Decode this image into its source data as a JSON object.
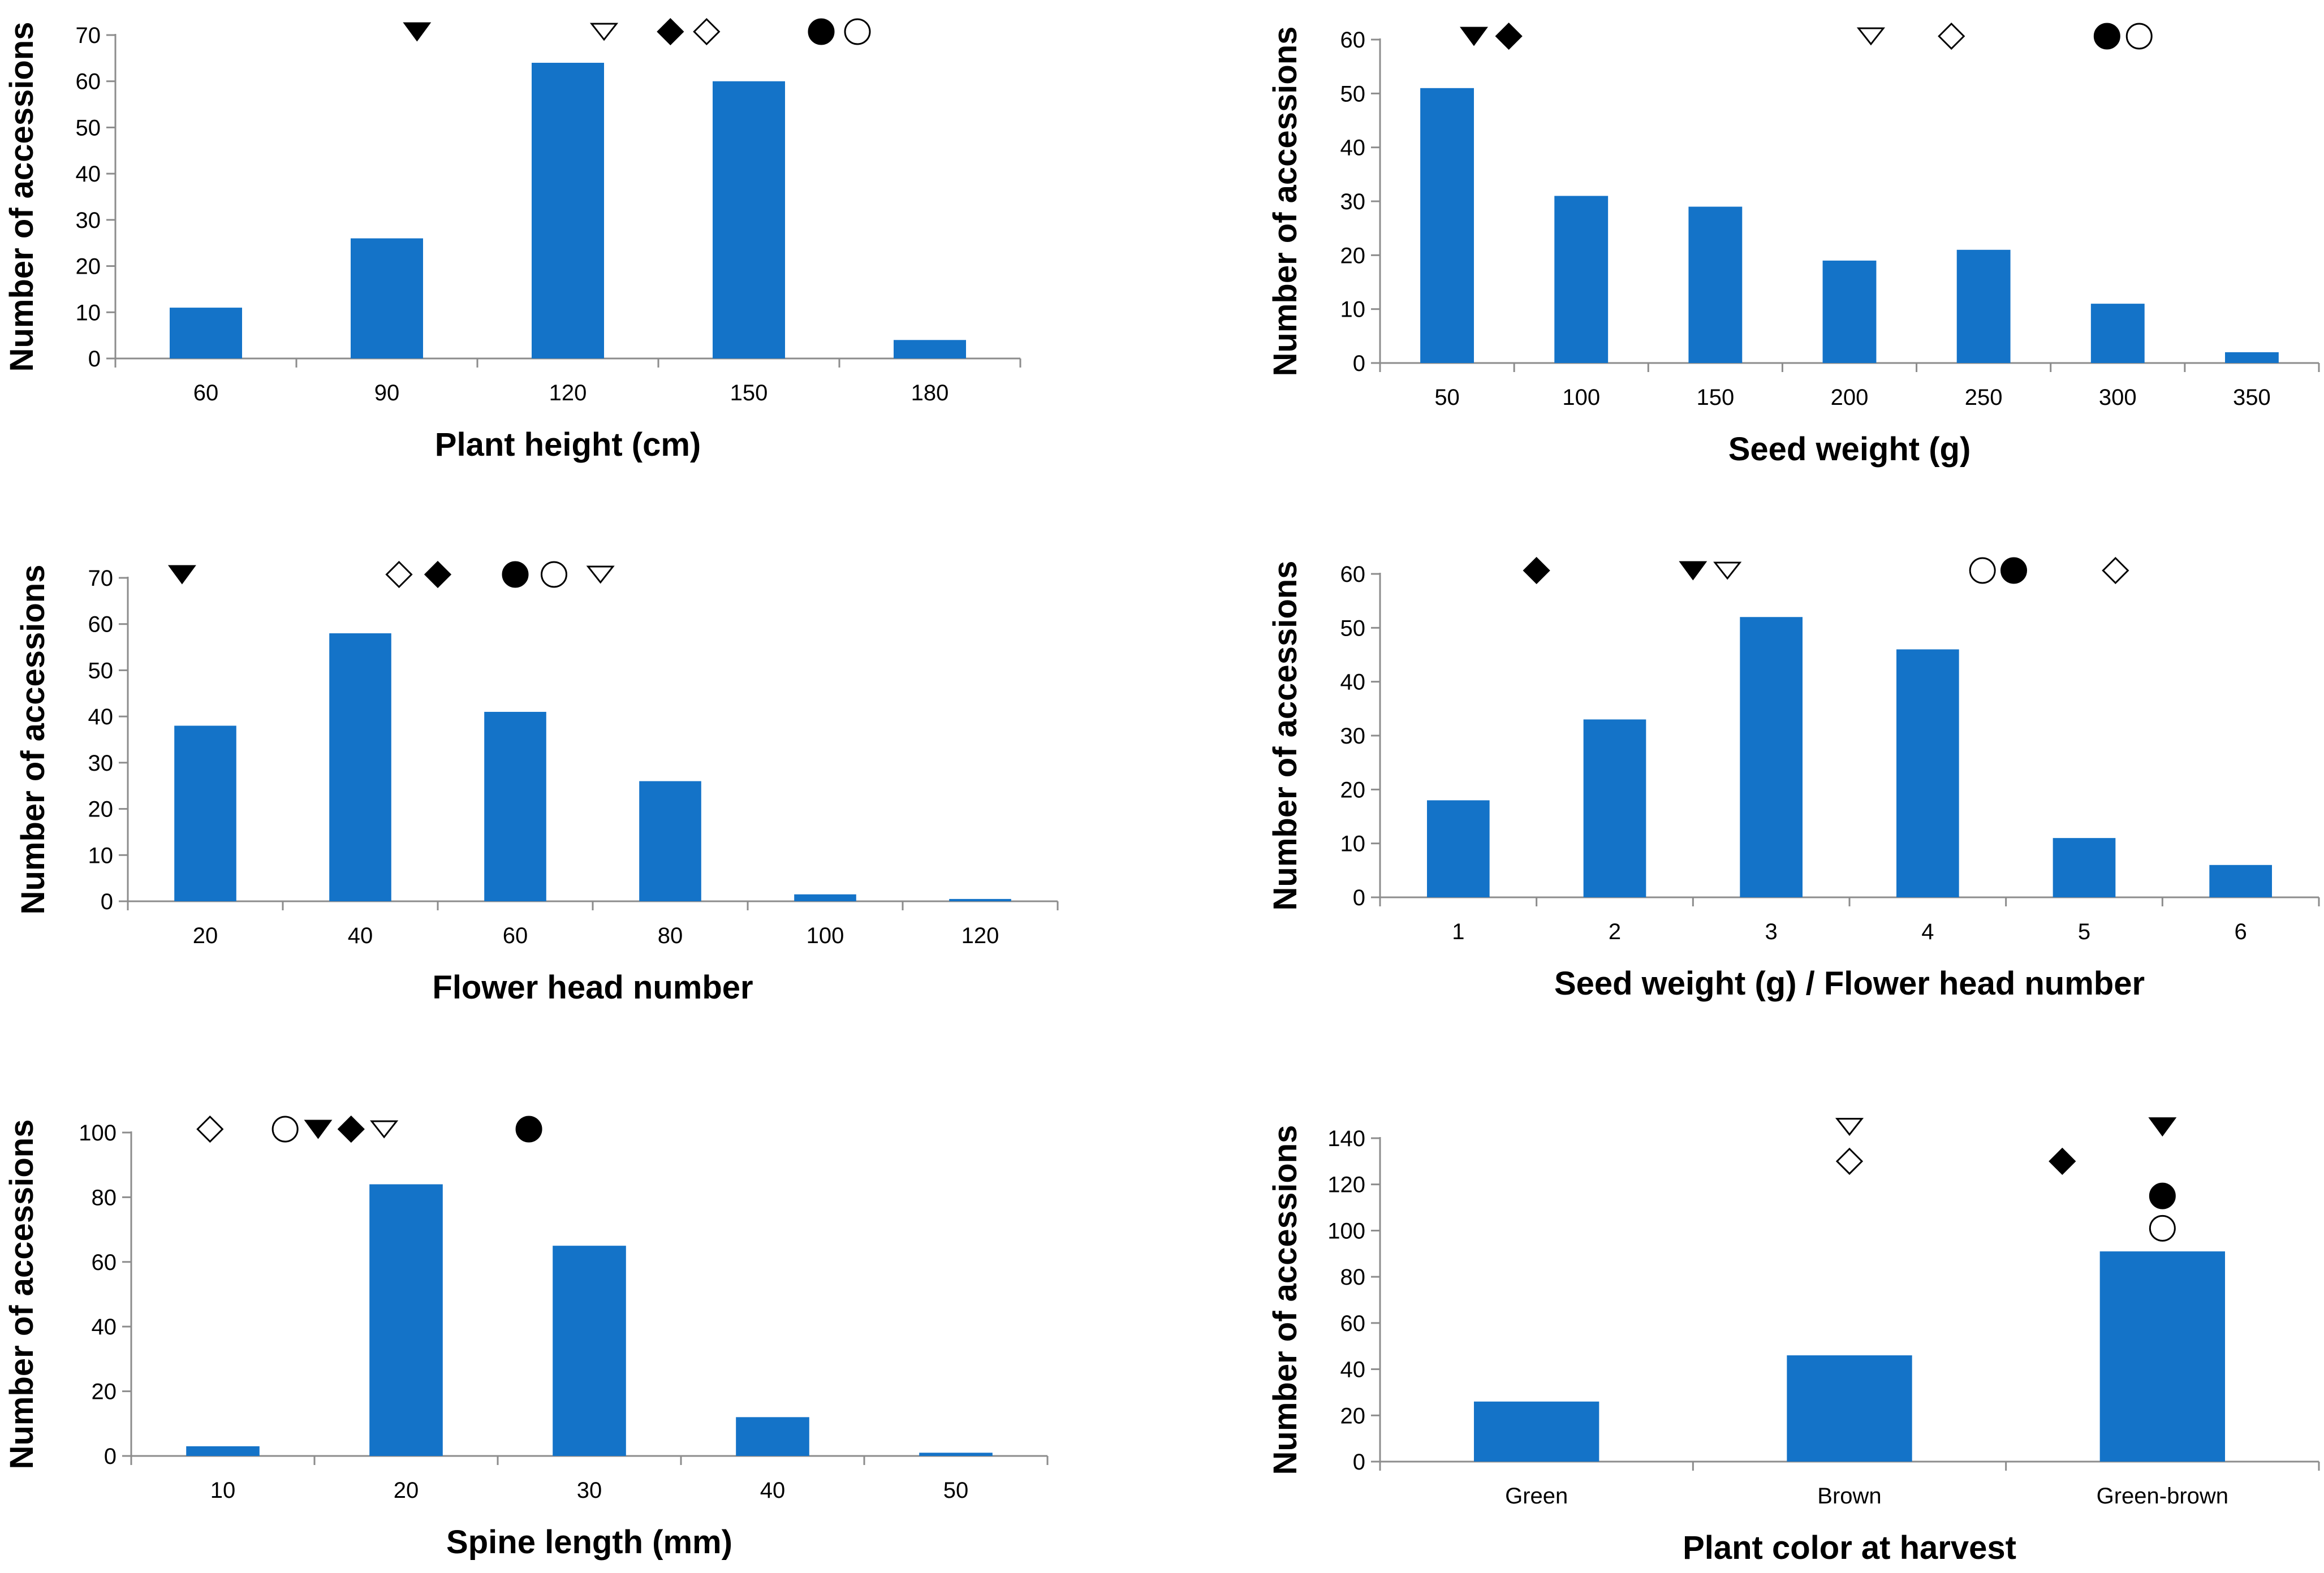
{
  "colors": {
    "bar": "#1473C8",
    "axis": "#8C8C8C",
    "marker": "#000000"
  },
  "chart_data": [
    {
      "type": "bar",
      "title": "",
      "xlabel": "Plant height (cm)",
      "ylabel": "Number of accessions",
      "categories": [
        "60",
        "90",
        "120",
        "150",
        "180"
      ],
      "values": [
        11,
        26,
        64,
        60,
        4
      ],
      "ylim": [
        0,
        70
      ],
      "yticks": [
        "0",
        "10",
        "20",
        "30",
        "40",
        "50",
        "60",
        "70"
      ],
      "grid": false,
      "markers": [
        {
          "symbol": "triangle-filled",
          "x": 95
        },
        {
          "symbol": "triangle-open",
          "x": 126
        },
        {
          "symbol": "diamond-filled",
          "x": 137
        },
        {
          "symbol": "diamond-open",
          "x": 143
        },
        {
          "symbol": "circle-filled",
          "x": 162
        },
        {
          "symbol": "circle-open",
          "x": 168
        }
      ]
    },
    {
      "type": "bar",
      "title": "",
      "xlabel": "Seed weight (g)",
      "ylabel": "Number of accessions",
      "categories": [
        "50",
        "100",
        "150",
        "200",
        "250",
        "300",
        "350"
      ],
      "values": [
        51,
        31,
        29,
        19,
        21,
        11,
        2
      ],
      "ylim": [
        0,
        60
      ],
      "yticks": [
        "0",
        "10",
        "20",
        "30",
        "40",
        "50",
        "60"
      ],
      "grid": false,
      "markers": [
        {
          "symbol": "triangle-filled",
          "x": 60
        },
        {
          "symbol": "diamond-filled",
          "x": 73
        },
        {
          "symbol": "triangle-open",
          "x": 208
        },
        {
          "symbol": "diamond-open",
          "x": 238
        },
        {
          "symbol": "circle-filled",
          "x": 296
        },
        {
          "symbol": "circle-open",
          "x": 308
        }
      ]
    },
    {
      "type": "bar",
      "title": "",
      "xlabel": "Flower head number",
      "ylabel": "Number of accessions",
      "categories": [
        "20",
        "40",
        "60",
        "80",
        "100",
        "120"
      ],
      "values": [
        38,
        58,
        41,
        26,
        1.5,
        0.5
      ],
      "ylim": [
        0,
        70
      ],
      "yticks": [
        "0",
        "10",
        "20",
        "30",
        "40",
        "50",
        "60",
        "70"
      ],
      "grid": false,
      "markers": [
        {
          "symbol": "triangle-filled",
          "x": 17
        },
        {
          "symbol": "diamond-open",
          "x": 45
        },
        {
          "symbol": "diamond-filled",
          "x": 50
        },
        {
          "symbol": "circle-filled",
          "x": 60
        },
        {
          "symbol": "circle-open",
          "x": 65
        },
        {
          "symbol": "triangle-open",
          "x": 71
        }
      ]
    },
    {
      "type": "bar",
      "title": "",
      "xlabel": "Seed weight (g) / Flower head number",
      "ylabel": "Number of accessions",
      "categories": [
        "1",
        "2",
        "3",
        "4",
        "5",
        "6"
      ],
      "values": [
        18,
        33,
        52,
        46,
        11,
        6
      ],
      "ylim": [
        0,
        60
      ],
      "yticks": [
        "0",
        "10",
        "20",
        "30",
        "40",
        "50",
        "60"
      ],
      "grid": false,
      "markers": [
        {
          "symbol": "diamond-filled",
          "x": 1.5
        },
        {
          "symbol": "triangle-filled",
          "x": 2.5
        },
        {
          "symbol": "triangle-open",
          "x": 2.72
        },
        {
          "symbol": "circle-open",
          "x": 4.35
        },
        {
          "symbol": "circle-filled",
          "x": 4.55
        },
        {
          "symbol": "diamond-open",
          "x": 5.2
        }
      ]
    },
    {
      "type": "bar",
      "title": "",
      "xlabel": "Spine length (mm)",
      "ylabel": "Number of accessions",
      "categories": [
        "10",
        "20",
        "30",
        "40",
        "50"
      ],
      "values": [
        3,
        84,
        65,
        12,
        1
      ],
      "ylim": [
        0,
        100
      ],
      "yticks": [
        "0",
        "20",
        "40",
        "60",
        "80",
        "100"
      ],
      "grid": false,
      "markers": [
        {
          "symbol": "diamond-open",
          "x": 9.3
        },
        {
          "symbol": "circle-open",
          "x": 13.4
        },
        {
          "symbol": "triangle-filled",
          "x": 15.2
        },
        {
          "symbol": "diamond-filled",
          "x": 17.0
        },
        {
          "symbol": "triangle-open",
          "x": 18.8
        },
        {
          "symbol": "circle-filled",
          "x": 26.7
        }
      ]
    },
    {
      "type": "bar",
      "title": "",
      "xlabel": "Plant color at harvest",
      "ylabel": "Number of accessions",
      "categories": [
        "Green",
        "Brown",
        "Green-brown"
      ],
      "values": [
        26,
        46,
        91
      ],
      "ylim": [
        0,
        140
      ],
      "yticks": [
        "0",
        "20",
        "40",
        "60",
        "80",
        "100",
        "120",
        "140"
      ],
      "grid": false,
      "markers": [
        {
          "symbol": "triangle-open",
          "x": "Brown",
          "offset": 0,
          "level": 145
        },
        {
          "symbol": "diamond-open",
          "x": "Brown",
          "offset": 0,
          "level": 130
        },
        {
          "symbol": "diamond-filled",
          "x": "Green-brown",
          "offset": -0.32,
          "level": 130
        },
        {
          "symbol": "triangle-filled",
          "x": "Green-brown",
          "offset": 0,
          "level": 145
        },
        {
          "symbol": "circle-filled",
          "x": "Green-brown",
          "offset": 0,
          "level": 115
        },
        {
          "symbol": "circle-open",
          "x": "Green-brown",
          "offset": 0,
          "level": 101
        }
      ]
    }
  ]
}
